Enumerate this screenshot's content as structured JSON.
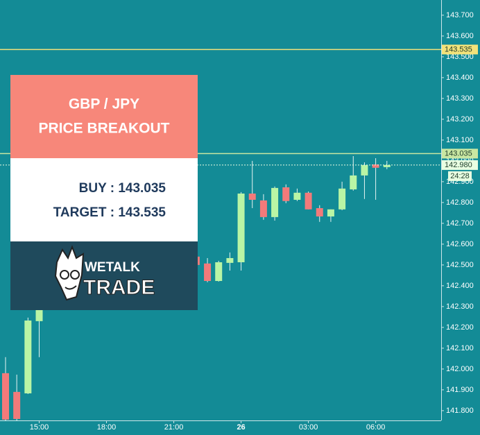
{
  "chart_data": {
    "type": "candlestick",
    "x": [
      "13:30",
      "14:00",
      "14:30",
      "15:00",
      "15:30",
      "16:00",
      "16:30",
      "17:00",
      "17:30",
      "18:00",
      "18:30",
      "19:00",
      "19:30",
      "20:00",
      "20:30",
      "21:00",
      "21:30",
      "22:00",
      "22:30",
      "23:00",
      "23:30",
      "26",
      "00:30",
      "01:00",
      "01:30",
      "02:00",
      "02:30",
      "03:00",
      "03:30",
      "04:00",
      "04:30",
      "05:00",
      "05:30",
      "06:00",
      "06:30"
    ],
    "open": [
      141.98,
      141.89,
      141.883,
      142.23,
      null,
      null,
      null,
      null,
      null,
      null,
      null,
      null,
      null,
      null,
      null,
      null,
      null,
      142.54,
      142.507,
      142.423,
      142.51,
      142.513,
      142.843,
      142.81,
      142.73,
      142.873,
      142.813,
      142.847,
      142.773,
      142.733,
      142.767,
      142.863,
      142.93,
      142.983,
      142.97
    ],
    "high": [
      142.057,
      141.973,
      142.247,
      142.3,
      null,
      null,
      null,
      null,
      null,
      null,
      null,
      null,
      null,
      null,
      null,
      null,
      null,
      142.55,
      142.533,
      142.52,
      142.56,
      142.85,
      143.0,
      142.84,
      142.877,
      142.887,
      142.867,
      142.853,
      142.787,
      142.767,
      142.9,
      143.023,
      142.993,
      143.013,
      143.0
    ],
    "low": [
      141.75,
      141.75,
      141.88,
      142.057,
      null,
      null,
      null,
      null,
      null,
      null,
      null,
      null,
      null,
      null,
      null,
      null,
      null,
      142.49,
      142.417,
      142.42,
      142.473,
      142.473,
      142.773,
      142.717,
      142.713,
      142.797,
      142.807,
      142.767,
      142.707,
      142.707,
      142.763,
      142.857,
      142.817,
      142.813,
      142.96
    ],
    "close": [
      141.757,
      141.76,
      142.233,
      142.29,
      null,
      null,
      null,
      null,
      null,
      null,
      null,
      null,
      null,
      null,
      null,
      null,
      null,
      142.5,
      142.423,
      142.513,
      142.533,
      142.843,
      142.813,
      142.73,
      142.87,
      142.807,
      142.847,
      142.767,
      142.733,
      142.767,
      142.867,
      142.93,
      142.98,
      142.967,
      142.98
    ],
    "up_color": "#b9f5a5",
    "down_color": "#f27a7a",
    "ylim": [
      141.753,
      143.773
    ],
    "yticks": [
      {
        "value": 141.8,
        "label": "141.800"
      },
      {
        "value": 141.9,
        "label": "141.900"
      },
      {
        "value": 142.0,
        "label": "142.000"
      },
      {
        "value": 142.1,
        "label": "142.100"
      },
      {
        "value": 142.2,
        "label": "142.200"
      },
      {
        "value": 142.3,
        "label": "142.300"
      },
      {
        "value": 142.4,
        "label": "142.400"
      },
      {
        "value": 142.5,
        "label": "142.500"
      },
      {
        "value": 142.6,
        "label": "142.600"
      },
      {
        "value": 142.7,
        "label": "142.700"
      },
      {
        "value": 142.8,
        "label": "142.800"
      },
      {
        "value": 142.9,
        "label": "142.900"
      },
      {
        "value": 143.0,
        "label": "143.000"
      },
      {
        "value": 143.1,
        "label": "143.100"
      },
      {
        "value": 143.2,
        "label": "143.200"
      },
      {
        "value": 143.3,
        "label": "143.300"
      },
      {
        "value": 143.4,
        "label": "143.400"
      },
      {
        "value": 143.5,
        "label": "143.500"
      },
      {
        "value": 143.6,
        "label": "143.600"
      },
      {
        "value": 143.7,
        "label": "143.700"
      }
    ],
    "xticks": [
      "15:00",
      "18:00",
      "21:00",
      "26",
      "03:00",
      "06:00"
    ],
    "price_lines": [
      {
        "value": 143.535,
        "color": "#f2e27a",
        "style": "solid"
      },
      {
        "value": 143.035,
        "color": "#c9e7a2",
        "style": "solid"
      },
      {
        "value": 142.98,
        "label": "142.980",
        "color": "#e9ffe2",
        "style": "dotted"
      }
    ],
    "countdown": "24:28"
  },
  "overlay": {
    "title_lines": [
      "GBP / JPY",
      "PRICE BREAKOUT"
    ],
    "buy": "BUY : 143.035",
    "target": "TARGET : 143.535",
    "logo_top": "WETALK",
    "logo_bottom": "TRADE"
  }
}
